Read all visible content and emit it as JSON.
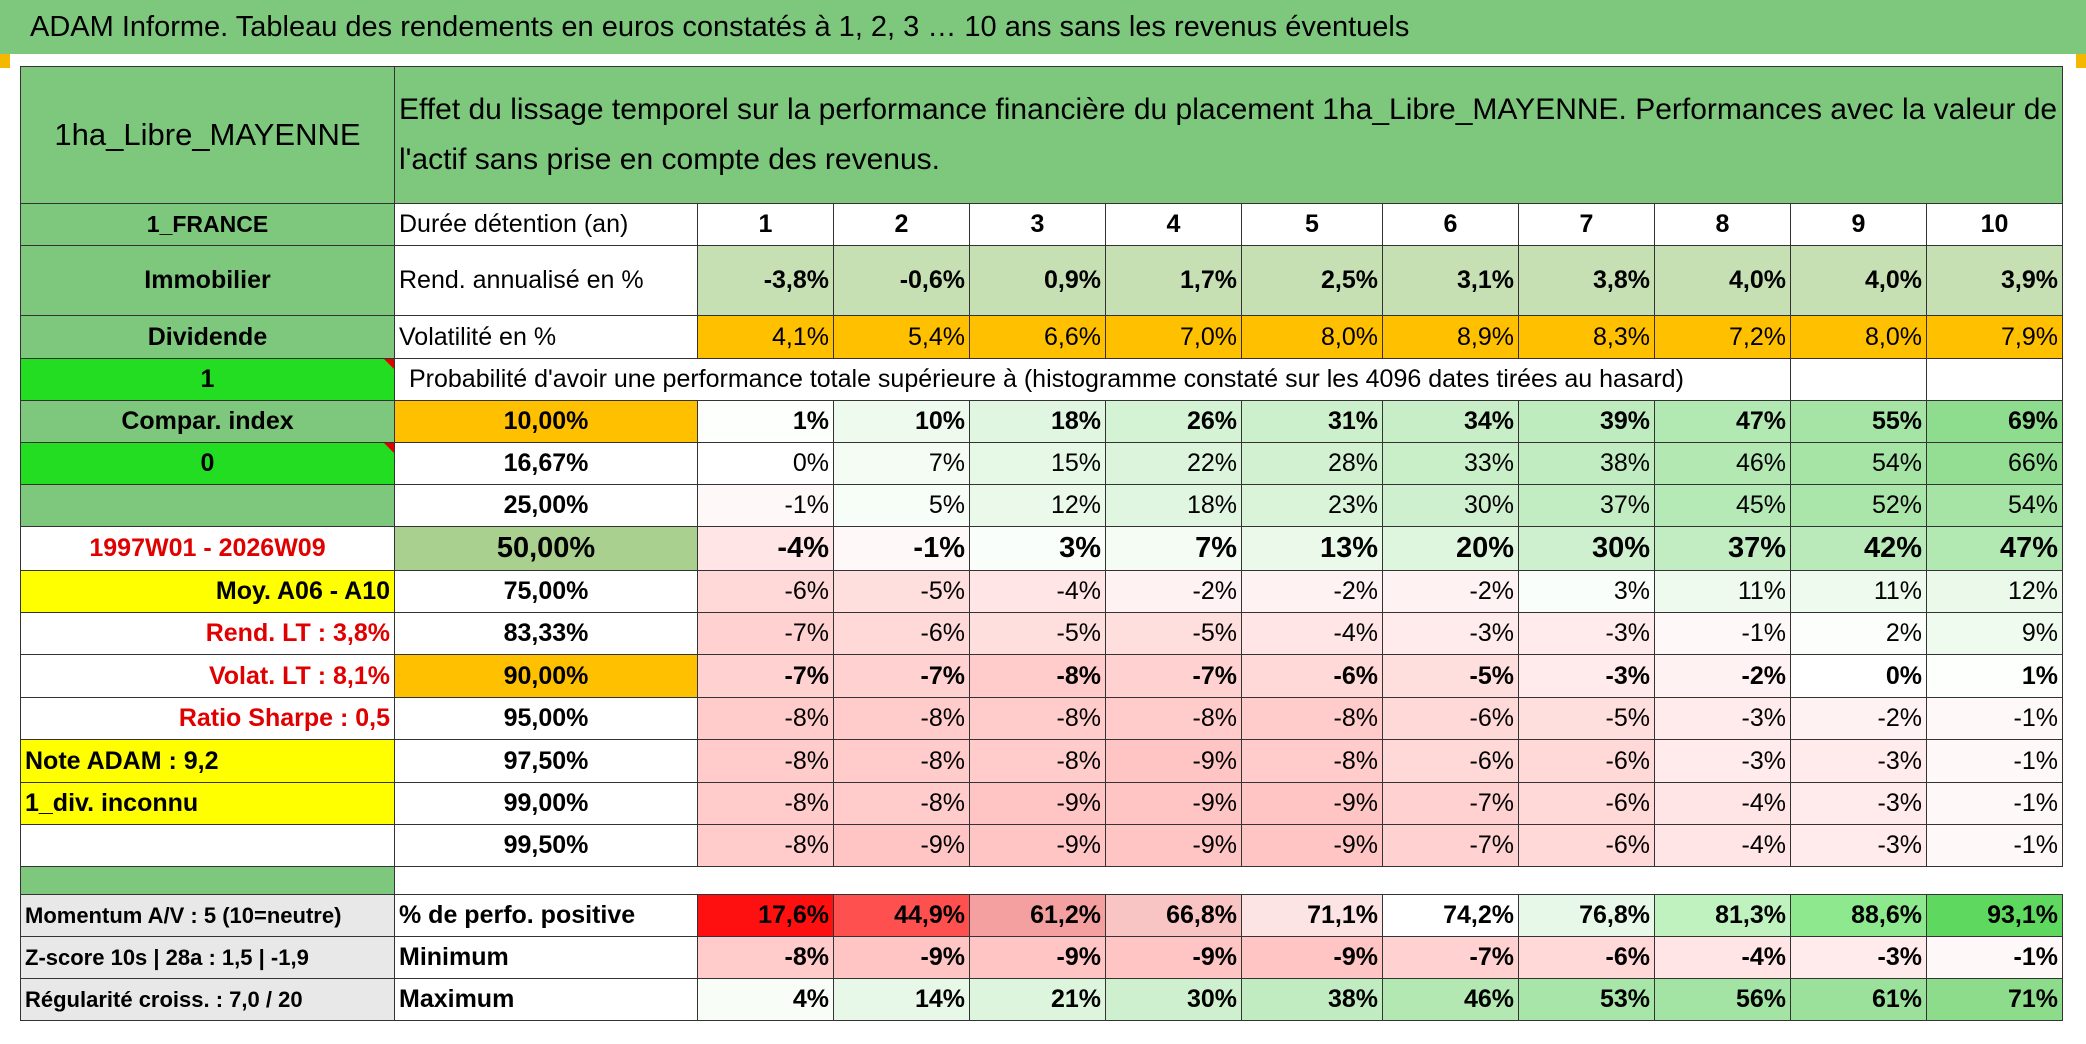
{
  "title": "ADAM Informe. Tableau des rendements en euros constatés à 1, 2, 3 … 10 ans sans les revenus éventuels",
  "asset_name": "1ha_Libre_MAYENNE",
  "description": "Effet du lissage temporel sur la performance financière du placement 1ha_Libre_MAYENNE. Performances avec la valeur de l'actif sans prise en compte des revenus.",
  "left_labels": {
    "country": "1_FRANCE",
    "category": "Immobilier",
    "dividend": "Dividende",
    "one": "1",
    "compar_index": "Compar. index",
    "zero": "0",
    "period": "1997W01 - 2026W09",
    "moy": "Moy. A06 - A10",
    "rend_lt": "Rend. LT :   3,8%",
    "volat_lt": "Volat. LT :   8,1%",
    "sharpe": "Ratio Sharpe :    0,5",
    "note": "Note ADAM : 9,2",
    "div": "1_div. inconnu"
  },
  "header": {
    "duration_label": "Durée détention (an)",
    "years": [
      "1",
      "2",
      "3",
      "4",
      "5",
      "6",
      "7",
      "8",
      "9",
      "10"
    ]
  },
  "rend_row": {
    "label": "Rend. annualisé en %",
    "values": [
      "-3,8%",
      "-0,6%",
      "0,9%",
      "1,7%",
      "2,5%",
      "3,1%",
      "3,8%",
      "4,0%",
      "4,0%",
      "3,9%"
    ]
  },
  "vol_row": {
    "label": "Volatilité en %",
    "values": [
      "4,1%",
      "5,4%",
      "6,6%",
      "7,0%",
      "8,0%",
      "8,9%",
      "8,3%",
      "7,2%",
      "8,0%",
      "7,9%"
    ]
  },
  "prob_label": "Probabilité d'avoir une performance totale supérieure à (histogramme constaté sur les 4096 dates tirées au hasard)",
  "percentile_rows": [
    {
      "pct": "10,00%",
      "values": [
        "1%",
        "10%",
        "18%",
        "26%",
        "31%",
        "34%",
        "39%",
        "47%",
        "55%",
        "69%"
      ]
    },
    {
      "pct": "16,67%",
      "values": [
        "0%",
        "7%",
        "15%",
        "22%",
        "28%",
        "33%",
        "38%",
        "46%",
        "54%",
        "66%"
      ]
    },
    {
      "pct": "25,00%",
      "values": [
        "-1%",
        "5%",
        "12%",
        "18%",
        "23%",
        "30%",
        "37%",
        "45%",
        "52%",
        "54%"
      ]
    },
    {
      "pct": "50,00%",
      "values": [
        "-4%",
        "-1%",
        "3%",
        "7%",
        "13%",
        "20%",
        "30%",
        "37%",
        "42%",
        "47%"
      ]
    },
    {
      "pct": "75,00%",
      "values": [
        "-6%",
        "-5%",
        "-4%",
        "-2%",
        "-2%",
        "-2%",
        "3%",
        "11%",
        "11%",
        "12%"
      ]
    },
    {
      "pct": "83,33%",
      "values": [
        "-7%",
        "-6%",
        "-5%",
        "-5%",
        "-4%",
        "-3%",
        "-3%",
        "-1%",
        "2%",
        "9%"
      ]
    },
    {
      "pct": "90,00%",
      "values": [
        "-7%",
        "-7%",
        "-8%",
        "-7%",
        "-6%",
        "-5%",
        "-3%",
        "-2%",
        "0%",
        "1%"
      ]
    },
    {
      "pct": "95,00%",
      "values": [
        "-8%",
        "-8%",
        "-8%",
        "-8%",
        "-8%",
        "-6%",
        "-5%",
        "-3%",
        "-2%",
        "-1%"
      ]
    },
    {
      "pct": "97,50%",
      "values": [
        "-8%",
        "-8%",
        "-8%",
        "-9%",
        "-8%",
        "-6%",
        "-6%",
        "-3%",
        "-3%",
        "-1%"
      ]
    },
    {
      "pct": "99,00%",
      "values": [
        "-8%",
        "-8%",
        "-9%",
        "-9%",
        "-9%",
        "-7%",
        "-6%",
        "-4%",
        "-3%",
        "-1%"
      ]
    },
    {
      "pct": "99,50%",
      "values": [
        "-8%",
        "-9%",
        "-9%",
        "-9%",
        "-9%",
        "-7%",
        "-6%",
        "-4%",
        "-3%",
        "-1%"
      ]
    }
  ],
  "bottom_left": {
    "momentum": "Momentum A/V : 5 (10=neutre)",
    "zscore": "Z-score 10s | 28a : 1,5 | -1,9",
    "regularite": "Régularité croiss. : 7,0 / 20"
  },
  "positive_row": {
    "label": "% de perfo. positive",
    "values": [
      "17,6%",
      "44,9%",
      "61,2%",
      "66,8%",
      "71,1%",
      "74,2%",
      "76,8%",
      "81,3%",
      "88,6%",
      "93,1%"
    ]
  },
  "min_row": {
    "label": "Minimum",
    "values": [
      "-8%",
      "-9%",
      "-9%",
      "-9%",
      "-9%",
      "-7%",
      "-6%",
      "-4%",
      "-3%",
      "-1%"
    ]
  },
  "max_row": {
    "label": "Maximum",
    "values": [
      "4%",
      "14%",
      "21%",
      "30%",
      "38%",
      "46%",
      "53%",
      "56%",
      "61%",
      "71%"
    ]
  },
  "colors": {
    "header_green": "#7ec87e",
    "bright_green": "#22dd22",
    "yellow": "#ffff00",
    "orange": "#ffc000",
    "red_text": "#e00000"
  }
}
